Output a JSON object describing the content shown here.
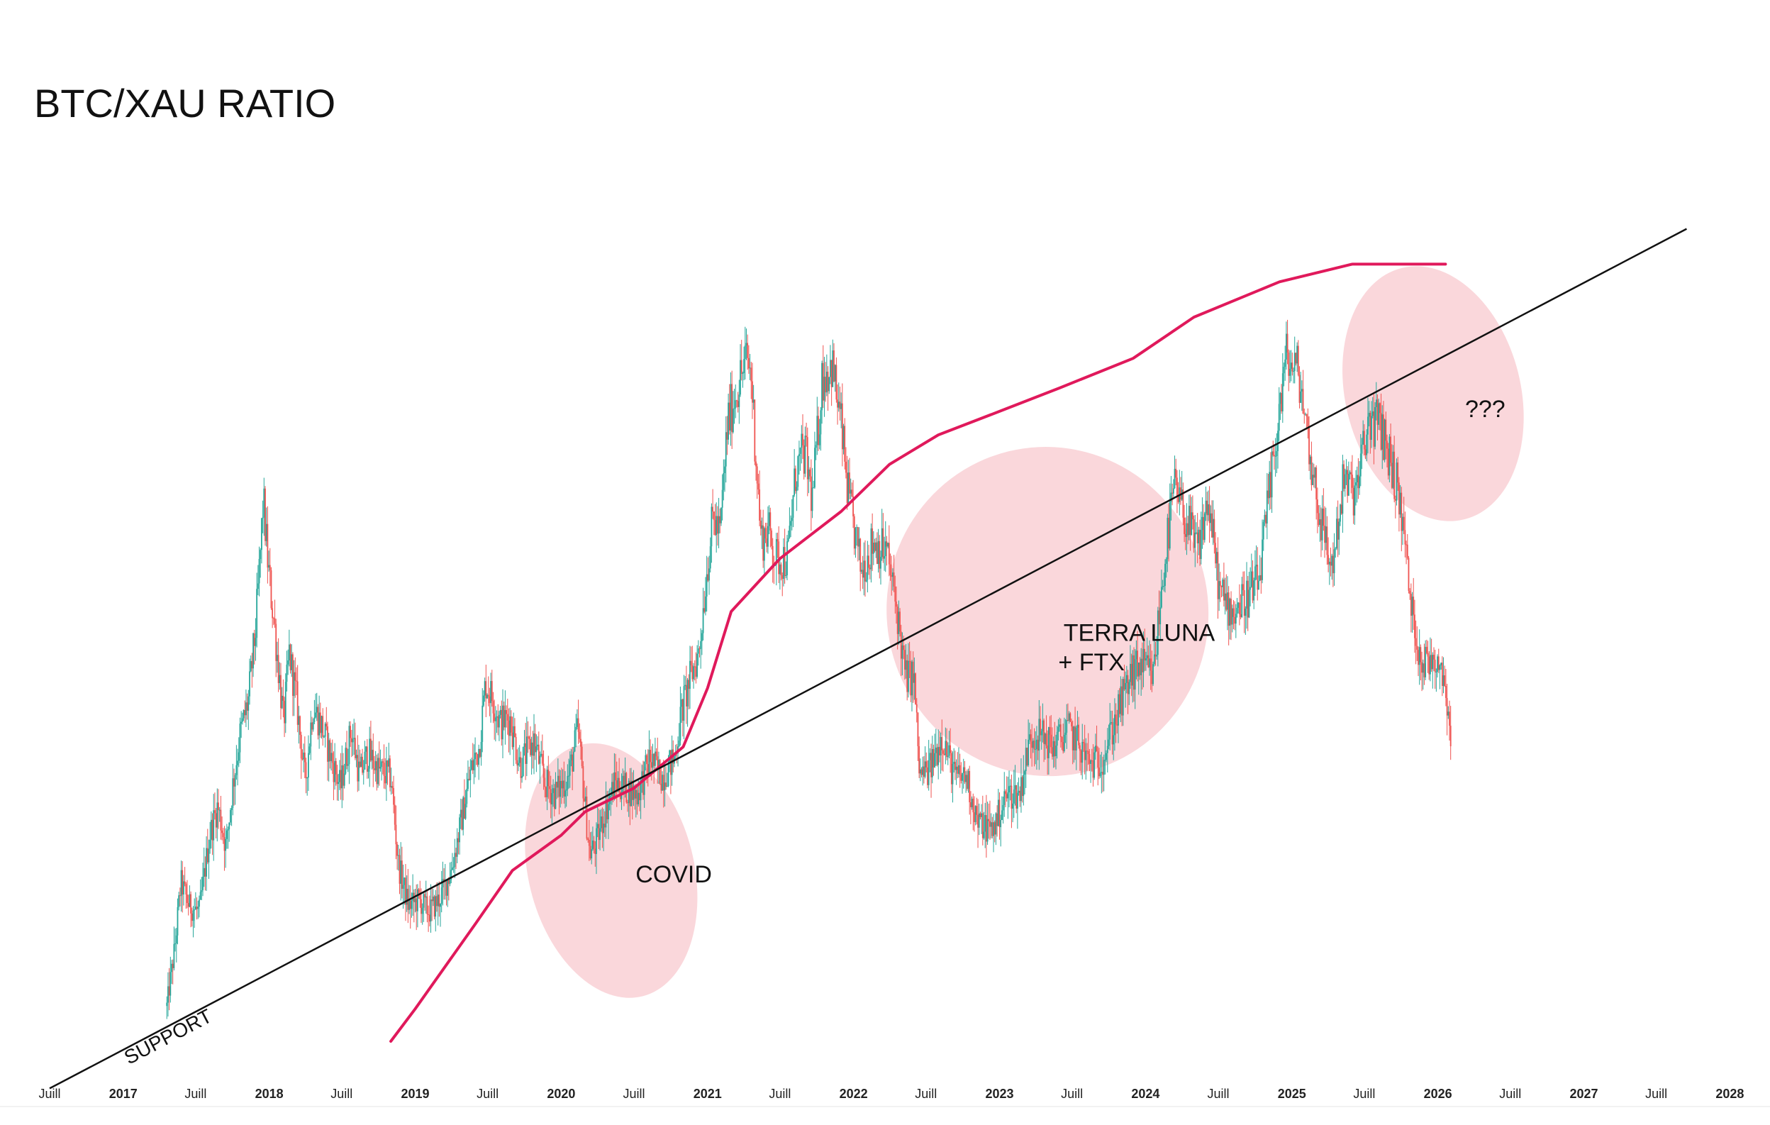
{
  "chart_data": {
    "type": "line",
    "title": "BTC/XAU RATIO",
    "xlabel": "",
    "ylabel": "",
    "y_axis_printed": false,
    "grid": false,
    "x_ticks": [
      {
        "label": "Juill",
        "date": "2016-07-01",
        "kind": "month"
      },
      {
        "label": "2017",
        "date": "2017-01-01",
        "kind": "year"
      },
      {
        "label": "Juill",
        "date": "2017-07-01",
        "kind": "month"
      },
      {
        "label": "2018",
        "date": "2018-01-01",
        "kind": "year"
      },
      {
        "label": "Juill",
        "date": "2018-07-01",
        "kind": "month"
      },
      {
        "label": "2019",
        "date": "2019-01-01",
        "kind": "year"
      },
      {
        "label": "Juill",
        "date": "2019-07-01",
        "kind": "month"
      },
      {
        "label": "2020",
        "date": "2020-01-01",
        "kind": "year"
      },
      {
        "label": "Juill",
        "date": "2020-07-01",
        "kind": "month"
      },
      {
        "label": "2021",
        "date": "2021-01-01",
        "kind": "year"
      },
      {
        "label": "Juill",
        "date": "2021-07-01",
        "kind": "month"
      },
      {
        "label": "2022",
        "date": "2022-01-01",
        "kind": "year"
      },
      {
        "label": "Juill",
        "date": "2022-07-01",
        "kind": "month"
      },
      {
        "label": "2023",
        "date": "2023-01-01",
        "kind": "year"
      },
      {
        "label": "Juill",
        "date": "2023-07-01",
        "kind": "month"
      },
      {
        "label": "2024",
        "date": "2024-01-01",
        "kind": "year"
      },
      {
        "label": "Juill",
        "date": "2024-07-01",
        "kind": "month"
      },
      {
        "label": "2025",
        "date": "2025-01-01",
        "kind": "year"
      },
      {
        "label": "Juill",
        "date": "2025-07-01",
        "kind": "month"
      },
      {
        "label": "2026",
        "date": "2026-01-01",
        "kind": "year"
      },
      {
        "label": "Juill",
        "date": "2026-07-01",
        "kind": "month"
      },
      {
        "label": "2027",
        "date": "2027-01-01",
        "kind": "year"
      },
      {
        "label": "Juill",
        "date": "2027-07-01",
        "kind": "month"
      },
      {
        "label": "2028",
        "date": "2028-01-01",
        "kind": "year"
      }
    ],
    "xlim": [
      "2016-07-01",
      "2028-01-01"
    ],
    "colors": {
      "up": "#26a69a",
      "down": "#ef5350",
      "ma": "#e0195b",
      "support": "#111111",
      "highlight": "#f8c9cf"
    },
    "series": [
      {
        "type": "line",
        "style": "candles",
        "points": [
          [
            "2017-04-20",
            0.6
          ],
          [
            "2017-05-10",
            1.6
          ],
          [
            "2017-05-25",
            2.7
          ],
          [
            "2017-06-15",
            2.3
          ],
          [
            "2017-07-10",
            2.2
          ],
          [
            "2017-08-05",
            3.5
          ],
          [
            "2017-08-25",
            4.0
          ],
          [
            "2017-09-15",
            3.3
          ],
          [
            "2017-10-01",
            4.3
          ],
          [
            "2017-10-20",
            5.2
          ],
          [
            "2017-11-10",
            5.8
          ],
          [
            "2017-11-28",
            7.0
          ],
          [
            "2017-12-10",
            8.3
          ],
          [
            "2017-12-17",
            9.2
          ],
          [
            "2017-12-30",
            8.0
          ],
          [
            "2018-01-15",
            7.0
          ],
          [
            "2018-02-06",
            5.4
          ],
          [
            "2018-02-20",
            6.6
          ],
          [
            "2018-03-10",
            5.8
          ],
          [
            "2018-04-01",
            4.4
          ],
          [
            "2018-04-20",
            5.7
          ],
          [
            "2018-05-10",
            5.4
          ],
          [
            "2018-06-01",
            4.9
          ],
          [
            "2018-06-28",
            4.3
          ],
          [
            "2018-07-25",
            5.3
          ],
          [
            "2018-08-15",
            4.5
          ],
          [
            "2018-09-05",
            4.9
          ],
          [
            "2018-10-01",
            4.6
          ],
          [
            "2018-11-01",
            4.5
          ],
          [
            "2018-11-20",
            3.0
          ],
          [
            "2018-12-15",
            2.3
          ],
          [
            "2019-01-10",
            2.4
          ],
          [
            "2019-02-05",
            2.2
          ],
          [
            "2019-03-01",
            2.4
          ],
          [
            "2019-04-01",
            2.9
          ],
          [
            "2019-04-25",
            3.7
          ],
          [
            "2019-05-20",
            4.6
          ],
          [
            "2019-06-10",
            5.0
          ],
          [
            "2019-06-26",
            6.1
          ],
          [
            "2019-07-15",
            5.8
          ],
          [
            "2019-08-01",
            5.4
          ],
          [
            "2019-08-25",
            5.5
          ],
          [
            "2019-09-20",
            4.7
          ],
          [
            "2019-10-25",
            5.1
          ],
          [
            "2019-11-20",
            4.4
          ],
          [
            "2019-12-15",
            4.2
          ],
          [
            "2020-01-20",
            4.5
          ],
          [
            "2020-02-12",
            5.3
          ],
          [
            "2020-03-12",
            3.2
          ],
          [
            "2020-03-25",
            3.3
          ],
          [
            "2020-04-20",
            3.9
          ],
          [
            "2020-05-15",
            4.4
          ],
          [
            "2020-06-10",
            4.3
          ],
          [
            "2020-07-10",
            4.2
          ],
          [
            "2020-08-10",
            4.8
          ],
          [
            "2020-09-10",
            4.5
          ],
          [
            "2020-10-10",
            4.8
          ],
          [
            "2020-10-28",
            5.6
          ],
          [
            "2020-11-20",
            6.2
          ],
          [
            "2020-12-10",
            6.6
          ],
          [
            "2020-12-30",
            8.0
          ],
          [
            "2021-01-15",
            8.9
          ],
          [
            "2021-02-01",
            8.6
          ],
          [
            "2021-02-20",
            10.5
          ],
          [
            "2021-03-15",
            11.1
          ],
          [
            "2021-04-10",
            11.6
          ],
          [
            "2021-04-20",
            11.3
          ],
          [
            "2021-05-15",
            8.5
          ],
          [
            "2021-06-01",
            8.7
          ],
          [
            "2021-06-20",
            8.2
          ],
          [
            "2021-07-20",
            8.2
          ],
          [
            "2021-08-10",
            9.7
          ],
          [
            "2021-09-01",
            10.0
          ],
          [
            "2021-09-20",
            9.2
          ],
          [
            "2021-10-15",
            11.3
          ],
          [
            "2021-11-08",
            11.5
          ],
          [
            "2021-11-30",
            10.5
          ],
          [
            "2021-12-20",
            9.2
          ],
          [
            "2022-01-20",
            8.0
          ],
          [
            "2022-02-20",
            8.5
          ],
          [
            "2022-03-25",
            8.3
          ],
          [
            "2022-04-20",
            7.3
          ],
          [
            "2022-05-10",
            6.2
          ],
          [
            "2022-06-01",
            6.2
          ],
          [
            "2022-06-15",
            4.5
          ],
          [
            "2022-07-10",
            4.6
          ],
          [
            "2022-08-10",
            5.2
          ],
          [
            "2022-09-10",
            4.5
          ],
          [
            "2022-10-10",
            4.5
          ],
          [
            "2022-11-08",
            3.7
          ],
          [
            "2022-12-15",
            3.6
          ],
          [
            "2023-01-20",
            4.2
          ],
          [
            "2023-02-20",
            4.2
          ],
          [
            "2023-03-20",
            5.2
          ],
          [
            "2023-04-15",
            5.2
          ],
          [
            "2023-05-15",
            5.0
          ],
          [
            "2023-06-20",
            5.3
          ],
          [
            "2023-07-15",
            5.1
          ],
          [
            "2023-08-15",
            4.7
          ],
          [
            "2023-09-15",
            4.8
          ],
          [
            "2023-10-25",
            5.6
          ],
          [
            "2023-11-25",
            6.2
          ],
          [
            "2023-12-20",
            6.4
          ],
          [
            "2024-01-20",
            6.2
          ],
          [
            "2024-02-15",
            8.0
          ],
          [
            "2024-03-12",
            9.4
          ],
          [
            "2024-04-15",
            8.8
          ],
          [
            "2024-05-10",
            8.3
          ],
          [
            "2024-06-05",
            9.2
          ],
          [
            "2024-07-05",
            7.6
          ],
          [
            "2024-08-05",
            7.3
          ],
          [
            "2024-09-05",
            7.5
          ],
          [
            "2024-10-10",
            7.8
          ],
          [
            "2024-11-10",
            9.5
          ],
          [
            "2024-12-05",
            11.0
          ],
          [
            "2024-12-18",
            11.6
          ],
          [
            "2025-01-20",
            11.3
          ],
          [
            "2025-02-15",
            10.0
          ],
          [
            "2025-03-10",
            9.0
          ],
          [
            "2025-04-10",
            8.0
          ],
          [
            "2025-05-10",
            9.5
          ],
          [
            "2025-06-10",
            9.3
          ],
          [
            "2025-07-14",
            10.6
          ],
          [
            "2025-08-15",
            10.4
          ],
          [
            "2025-09-15",
            9.6
          ],
          [
            "2025-10-06",
            8.8
          ],
          [
            "2025-10-25",
            7.4
          ],
          [
            "2025-11-10",
            6.8
          ],
          [
            "2025-11-25",
            6.4
          ],
          [
            "2025-12-15",
            6.5
          ],
          [
            "2026-01-05",
            6.5
          ],
          [
            "2026-01-25",
            5.8
          ],
          [
            "2026-02-02",
            5.2
          ]
        ]
      },
      {
        "type": "line",
        "style": "moving-average",
        "points": [
          [
            "2018-11-01",
            0.0
          ],
          [
            "2019-01-01",
            0.55
          ],
          [
            "2019-06-01",
            2.0
          ],
          [
            "2019-09-01",
            2.9
          ],
          [
            "2020-01-01",
            3.5
          ],
          [
            "2020-03-01",
            3.9
          ],
          [
            "2020-07-01",
            4.3
          ],
          [
            "2020-11-01",
            5.0
          ],
          [
            "2021-01-01",
            6.0
          ],
          [
            "2021-03-01",
            7.3
          ],
          [
            "2021-07-01",
            8.2
          ],
          [
            "2021-12-01",
            9.0
          ],
          [
            "2022-04-01",
            9.8
          ],
          [
            "2022-08-01",
            10.3
          ],
          [
            "2023-01-01",
            10.7
          ],
          [
            "2023-06-01",
            11.1
          ],
          [
            "2023-12-01",
            11.6
          ],
          [
            "2024-05-01",
            12.3
          ],
          [
            "2024-12-01",
            12.9
          ],
          [
            "2025-06-01",
            13.2
          ],
          [
            "2026-01-01",
            13.2
          ],
          [
            "2026-01-20",
            13.2
          ]
        ]
      },
      {
        "type": "line",
        "style": "trendline",
        "points": [
          [
            "2016-07-01",
            -0.8
          ],
          [
            "2027-09-15",
            13.8
          ]
        ]
      }
    ],
    "annotations": [
      {
        "text": "SUPPORT",
        "date": "2017-01-15",
        "value": -0.4
      },
      {
        "text": "COVID",
        "date": "2020-07-05",
        "value": 2.7
      },
      {
        "text": "TERRA LUNA",
        "date": "2023-06-10",
        "value": 6.8
      },
      {
        "text": "+ FTX",
        "date": "2023-05-28",
        "value": 6.3
      },
      {
        "text": "???",
        "date": "2026-03-10",
        "value": 10.6
      }
    ],
    "highlights": [
      {
        "label": "COVID",
        "center": [
          "2020-05-05",
          2.9
        ],
        "rx_months": 6.8,
        "ry_value": 2.2
      },
      {
        "label": "TERRA LUNA + FTX",
        "center": [
          "2023-05-01",
          7.3
        ],
        "rx_months": 13.2,
        "ry_value": 2.8
      },
      {
        "label": "???",
        "center": [
          "2025-12-20",
          11.0
        ],
        "rx_months": 7.2,
        "ry_value": 2.2
      }
    ]
  }
}
